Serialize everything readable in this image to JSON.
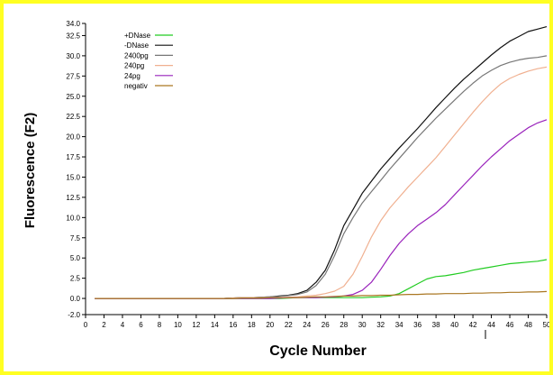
{
  "chart_data": {
    "type": "line",
    "xlabel": "Cycle Number",
    "ylabel": "Fluorescence (F2)",
    "xlim": [
      0,
      50
    ],
    "ylim": [
      -2,
      34
    ],
    "x_ticks": [
      0,
      2,
      4,
      6,
      8,
      10,
      12,
      14,
      16,
      18,
      20,
      22,
      24,
      26,
      28,
      30,
      32,
      34,
      36,
      38,
      40,
      42,
      44,
      46,
      48,
      50
    ],
    "x_tick_labels": [
      "0",
      "2",
      "4",
      "6",
      "8",
      "10",
      "12",
      "14",
      "16",
      "18",
      "20",
      "22",
      "24",
      "26",
      "28",
      "30",
      "32",
      "34",
      "36",
      "38",
      "40",
      "42",
      "44",
      "46",
      "48",
      "50"
    ],
    "y_ticks": [
      -2,
      0,
      2.5,
      5,
      7.5,
      10,
      12.5,
      15,
      17.5,
      20,
      22.5,
      25,
      27.5,
      30,
      32.5,
      34
    ],
    "y_tick_labels": [
      "-2.0",
      "0.0",
      "2.5",
      "5.0",
      "7.5",
      "10.0",
      "12.5",
      "15.0",
      "17.5",
      "20.0",
      "22.5",
      "25.0",
      "27.5",
      "30.0",
      "32.5",
      "34.0"
    ],
    "grid": false,
    "legend_position": "top-left",
    "x": [
      1,
      2,
      3,
      4,
      5,
      6,
      7,
      8,
      9,
      10,
      11,
      12,
      13,
      14,
      15,
      16,
      17,
      18,
      19,
      20,
      21,
      22,
      23,
      24,
      25,
      26,
      27,
      28,
      29,
      30,
      31,
      32,
      33,
      34,
      35,
      36,
      37,
      38,
      39,
      40,
      41,
      42,
      43,
      44,
      45,
      46,
      47,
      48,
      49,
      50
    ],
    "series": [
      {
        "name": "+DNase",
        "color": "#22cc22",
        "values": [
          0.0,
          0.0,
          0.0,
          0.0,
          0.0,
          0.0,
          0.0,
          0.0,
          0.0,
          0.0,
          0.0,
          0.0,
          0.0,
          0.0,
          0.0,
          0.0,
          0.0,
          0.0,
          0.0,
          0.0,
          0.0,
          0.05,
          0.1,
          0.1,
          0.1,
          0.1,
          0.1,
          0.1,
          0.1,
          0.1,
          0.15,
          0.2,
          0.3,
          0.6,
          1.2,
          1.8,
          2.4,
          2.7,
          2.8,
          3.0,
          3.2,
          3.5,
          3.7,
          3.9,
          4.1,
          4.3,
          4.4,
          4.5,
          4.6,
          4.8
        ]
      },
      {
        "name": "-DNase",
        "color": "#111111",
        "values": [
          0.0,
          0.0,
          0.0,
          0.0,
          0.0,
          0.0,
          0.0,
          0.0,
          0.0,
          0.0,
          0.0,
          0.0,
          0.0,
          0.0,
          0.0,
          0.05,
          0.1,
          0.1,
          0.15,
          0.2,
          0.3,
          0.4,
          0.6,
          1.0,
          2.0,
          3.5,
          6.0,
          9.0,
          11.0,
          13.0,
          14.5,
          16.0,
          17.3,
          18.6,
          19.8,
          21.0,
          22.3,
          23.6,
          24.8,
          26.0,
          27.1,
          28.1,
          29.1,
          30.1,
          31.0,
          31.8,
          32.4,
          33.0,
          33.3,
          33.6
        ]
      },
      {
        "name": "2400pg",
        "color": "#777777",
        "values": [
          0.0,
          0.0,
          0.0,
          0.0,
          0.0,
          0.0,
          0.0,
          0.0,
          0.0,
          0.0,
          0.0,
          0.0,
          0.0,
          0.0,
          0.0,
          0.05,
          0.1,
          0.1,
          0.15,
          0.2,
          0.25,
          0.35,
          0.5,
          0.8,
          1.6,
          3.0,
          5.3,
          8.0,
          10.0,
          11.8,
          13.2,
          14.6,
          16.0,
          17.3,
          18.6,
          19.9,
          21.1,
          22.3,
          23.4,
          24.5,
          25.6,
          26.6,
          27.5,
          28.2,
          28.8,
          29.2,
          29.5,
          29.7,
          29.8,
          30.0
        ]
      },
      {
        "name": "240pg",
        "color": "#f0b090",
        "values": [
          0.0,
          0.0,
          0.0,
          0.0,
          0.0,
          0.0,
          0.0,
          0.0,
          0.0,
          0.0,
          0.0,
          0.0,
          0.0,
          0.0,
          0.0,
          0.05,
          0.1,
          0.1,
          0.1,
          0.1,
          0.1,
          0.15,
          0.2,
          0.3,
          0.4,
          0.6,
          0.9,
          1.5,
          3.0,
          5.2,
          7.6,
          9.6,
          11.2,
          12.5,
          13.8,
          15.0,
          16.2,
          17.4,
          18.8,
          20.2,
          21.6,
          23.0,
          24.3,
          25.5,
          26.5,
          27.2,
          27.7,
          28.1,
          28.4,
          28.6
        ]
      },
      {
        "name": "24pg",
        "color": "#9922bb",
        "values": [
          0.0,
          0.0,
          0.0,
          0.0,
          0.0,
          0.0,
          0.0,
          0.0,
          0.0,
          0.0,
          0.0,
          0.0,
          0.0,
          0.0,
          0.0,
          0.0,
          0.0,
          0.0,
          0.0,
          0.0,
          0.05,
          0.1,
          0.1,
          0.1,
          0.1,
          0.15,
          0.2,
          0.3,
          0.5,
          1.0,
          2.0,
          3.6,
          5.3,
          6.8,
          8.0,
          9.0,
          9.8,
          10.6,
          11.6,
          12.8,
          14.0,
          15.2,
          16.4,
          17.5,
          18.5,
          19.5,
          20.3,
          21.1,
          21.7,
          22.1
        ]
      },
      {
        "name": "negativ",
        "color": "#aa7722",
        "values": [
          0.0,
          0.0,
          0.0,
          0.0,
          0.0,
          0.0,
          0.0,
          0.0,
          0.0,
          0.0,
          0.0,
          0.0,
          0.0,
          0.0,
          0.0,
          0.0,
          0.05,
          0.05,
          0.05,
          0.1,
          0.1,
          0.1,
          0.1,
          0.15,
          0.2,
          0.2,
          0.25,
          0.3,
          0.3,
          0.35,
          0.35,
          0.4,
          0.4,
          0.45,
          0.5,
          0.5,
          0.55,
          0.55,
          0.6,
          0.6,
          0.6,
          0.65,
          0.65,
          0.7,
          0.7,
          0.75,
          0.75,
          0.8,
          0.8,
          0.85
        ]
      }
    ]
  }
}
